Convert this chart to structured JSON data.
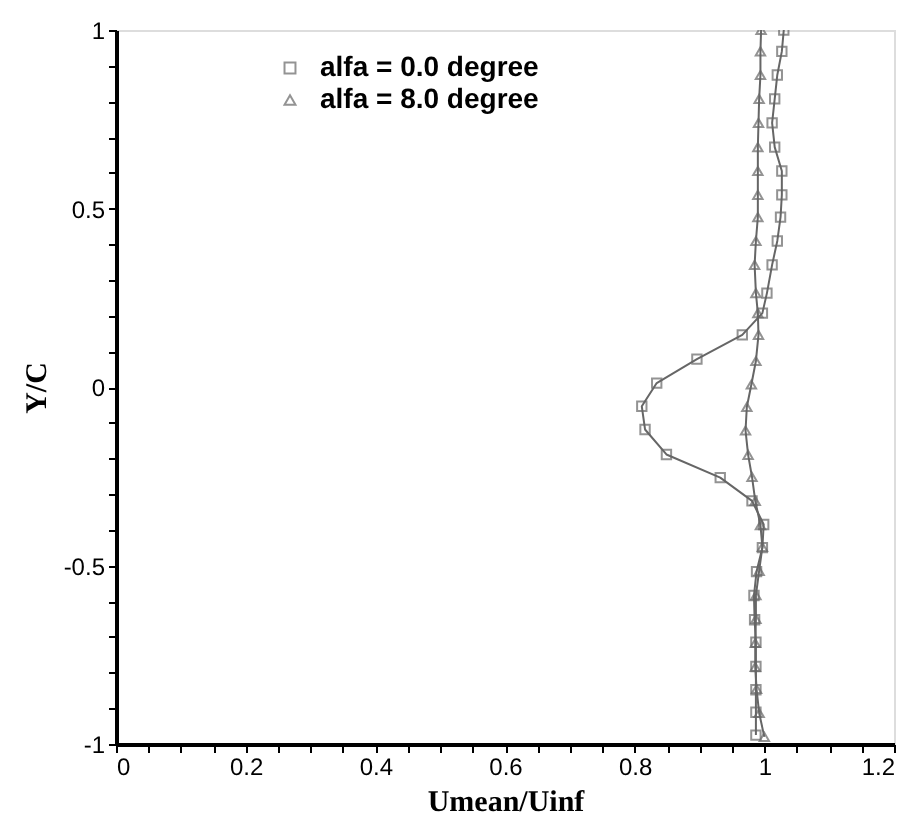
{
  "chart_data": {
    "type": "line",
    "xlabel": "Umean/Uinf",
    "ylabel": "Y/C",
    "xlim": [
      0,
      1.2
    ],
    "ylim": [
      -1,
      1
    ],
    "xticks": [
      0,
      {
        "value": 0.05,
        "label": null
      },
      {
        "value": 0.1,
        "label": null
      },
      {
        "value": 0.15,
        "label": null
      },
      0.2,
      {
        "value": 0.25,
        "label": null
      },
      {
        "value": 0.3,
        "label": null
      },
      {
        "value": 0.35,
        "label": null
      },
      0.4,
      {
        "value": 0.45,
        "label": null
      },
      {
        "value": 0.5,
        "label": null
      },
      {
        "value": 0.55,
        "label": null
      },
      0.6,
      {
        "value": 0.65,
        "label": null
      },
      {
        "value": 0.7,
        "label": null
      },
      {
        "value": 0.75,
        "label": null
      },
      0.8,
      {
        "value": 0.85,
        "label": null
      },
      {
        "value": 0.9,
        "label": null
      },
      {
        "value": 0.95,
        "label": null
      },
      1,
      {
        "value": 1.05,
        "label": null
      },
      {
        "value": 1.1,
        "label": null
      },
      {
        "value": 1.15,
        "label": null
      },
      1.2
    ],
    "yticks": [
      -1,
      {
        "value": -0.9,
        "label": null
      },
      {
        "value": -0.8,
        "label": null
      },
      {
        "value": -0.7,
        "label": null
      },
      {
        "value": -0.6,
        "label": null
      },
      -0.5,
      {
        "value": -0.4,
        "label": null
      },
      {
        "value": -0.3,
        "label": null
      },
      {
        "value": -0.2,
        "label": null
      },
      {
        "value": -0.1,
        "label": null
      },
      0,
      {
        "value": 0.1,
        "label": null
      },
      {
        "value": 0.2,
        "label": null
      },
      {
        "value": 0.3,
        "label": null
      },
      {
        "value": 0.4,
        "label": null
      },
      0.5,
      {
        "value": 0.6,
        "label": null
      },
      {
        "value": 0.7,
        "label": null
      },
      {
        "value": 0.8,
        "label": null
      },
      {
        "value": 0.9,
        "label": null
      },
      1
    ],
    "grid": false,
    "legend": "top left",
    "line_style": "solid",
    "series": [
      {
        "name": "alfa = 0.0 degree",
        "color": "#666666",
        "marker": "square",
        "x": [
          1.03,
          1.027,
          1.02,
          1.016,
          1.012,
          1.016,
          1.027,
          1.027,
          1.025,
          1.02,
          1.012,
          1.004,
          0.997,
          0.966,
          0.896,
          0.834,
          0.811,
          0.816,
          0.849,
          0.932,
          0.981,
          0.999,
          0.997,
          0.988,
          0.984,
          0.985,
          0.987,
          0.987,
          0.987,
          0.987,
          0.987
        ],
        "values": [
          1.0,
          0.94,
          0.874,
          0.807,
          0.74,
          0.672,
          0.605,
          0.538,
          0.476,
          0.409,
          0.342,
          0.263,
          0.207,
          0.146,
          0.078,
          0.011,
          -0.054,
          -0.119,
          -0.189,
          -0.254,
          -0.319,
          -0.385,
          -0.45,
          -0.517,
          -0.584,
          -0.652,
          -0.715,
          -0.783,
          -0.848,
          -0.911,
          -0.975
        ]
      },
      {
        "name": "alfa = 8.0 degree",
        "color": "#666666",
        "marker": "triangle",
        "x": [
          0.995,
          0.994,
          0.994,
          0.992,
          0.991,
          0.99,
          0.99,
          0.99,
          0.99,
          0.987,
          0.985,
          0.987,
          0.99,
          0.991,
          0.987,
          0.98,
          0.973,
          0.971,
          0.975,
          0.981,
          0.986,
          0.994,
          0.997,
          0.992,
          0.987,
          0.987,
          0.986,
          0.986,
          0.988,
          0.992,
          1.0
        ],
        "values": [
          1.0,
          0.94,
          0.874,
          0.807,
          0.74,
          0.672,
          0.605,
          0.538,
          0.476,
          0.409,
          0.342,
          0.263,
          0.207,
          0.146,
          0.073,
          0.007,
          -0.056,
          -0.122,
          -0.19,
          -0.252,
          -0.319,
          -0.387,
          -0.448,
          -0.515,
          -0.583,
          -0.65,
          -0.717,
          -0.784,
          -0.846,
          -0.913,
          -0.98
        ]
      }
    ]
  }
}
